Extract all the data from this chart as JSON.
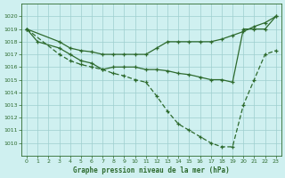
{
  "title": "Graphe pression niveau de la mer (hPa)",
  "xlim": [
    -0.5,
    23.5
  ],
  "ylim": [
    1009,
    1021
  ],
  "yticks": [
    1010,
    1011,
    1012,
    1013,
    1014,
    1015,
    1016,
    1017,
    1018,
    1019,
    1020
  ],
  "xticks": [
    0,
    1,
    2,
    3,
    4,
    5,
    6,
    7,
    8,
    9,
    10,
    11,
    12,
    13,
    14,
    15,
    16,
    17,
    18,
    19,
    20,
    21,
    22,
    23
  ],
  "bg_color": "#cff0f0",
  "grid_color": "#9ecece",
  "line_color": "#2d6a2d",
  "line1_x": [
    0,
    1,
    3,
    4,
    5,
    6,
    7,
    8,
    9,
    10,
    11,
    12,
    13,
    14,
    15,
    16,
    17,
    18,
    19,
    20,
    21,
    22,
    23
  ],
  "line1_y": [
    1019.0,
    1018.0,
    1017.5,
    1017.0,
    1016.5,
    1016.3,
    1015.8,
    1016.0,
    1016.0,
    1016.0,
    1015.8,
    1015.8,
    1015.7,
    1015.5,
    1015.4,
    1015.2,
    1015.0,
    1015.0,
    1014.8,
    1019.0,
    1019.0,
    1019.0,
    1020.0
  ],
  "line2_x": [
    0,
    3,
    4,
    5,
    6,
    7,
    8,
    9,
    10,
    11,
    12,
    13,
    14,
    15,
    16,
    17,
    18,
    19,
    20,
    21,
    22,
    23
  ],
  "line2_y": [
    1019.0,
    1018.0,
    1017.5,
    1017.3,
    1017.2,
    1017.0,
    1017.0,
    1017.0,
    1017.0,
    1017.0,
    1017.5,
    1018.0,
    1018.0,
    1018.0,
    1018.0,
    1018.0,
    1018.2,
    1018.5,
    1018.8,
    1019.2,
    1019.5,
    1020.0
  ],
  "line3_x": [
    0,
    3,
    4,
    5,
    6,
    7,
    8,
    9,
    10,
    11,
    12,
    13,
    14,
    15,
    16,
    17,
    18,
    19,
    20,
    21,
    22,
    23
  ],
  "line3_y": [
    1019.0,
    1017.0,
    1016.5,
    1016.2,
    1016.0,
    1015.8,
    1015.5,
    1015.3,
    1015.0,
    1014.8,
    1013.7,
    1012.5,
    1011.5,
    1011.0,
    1010.5,
    1010.0,
    1009.7,
    1009.7,
    1013.0,
    1015.0,
    1017.0,
    1017.3
  ]
}
